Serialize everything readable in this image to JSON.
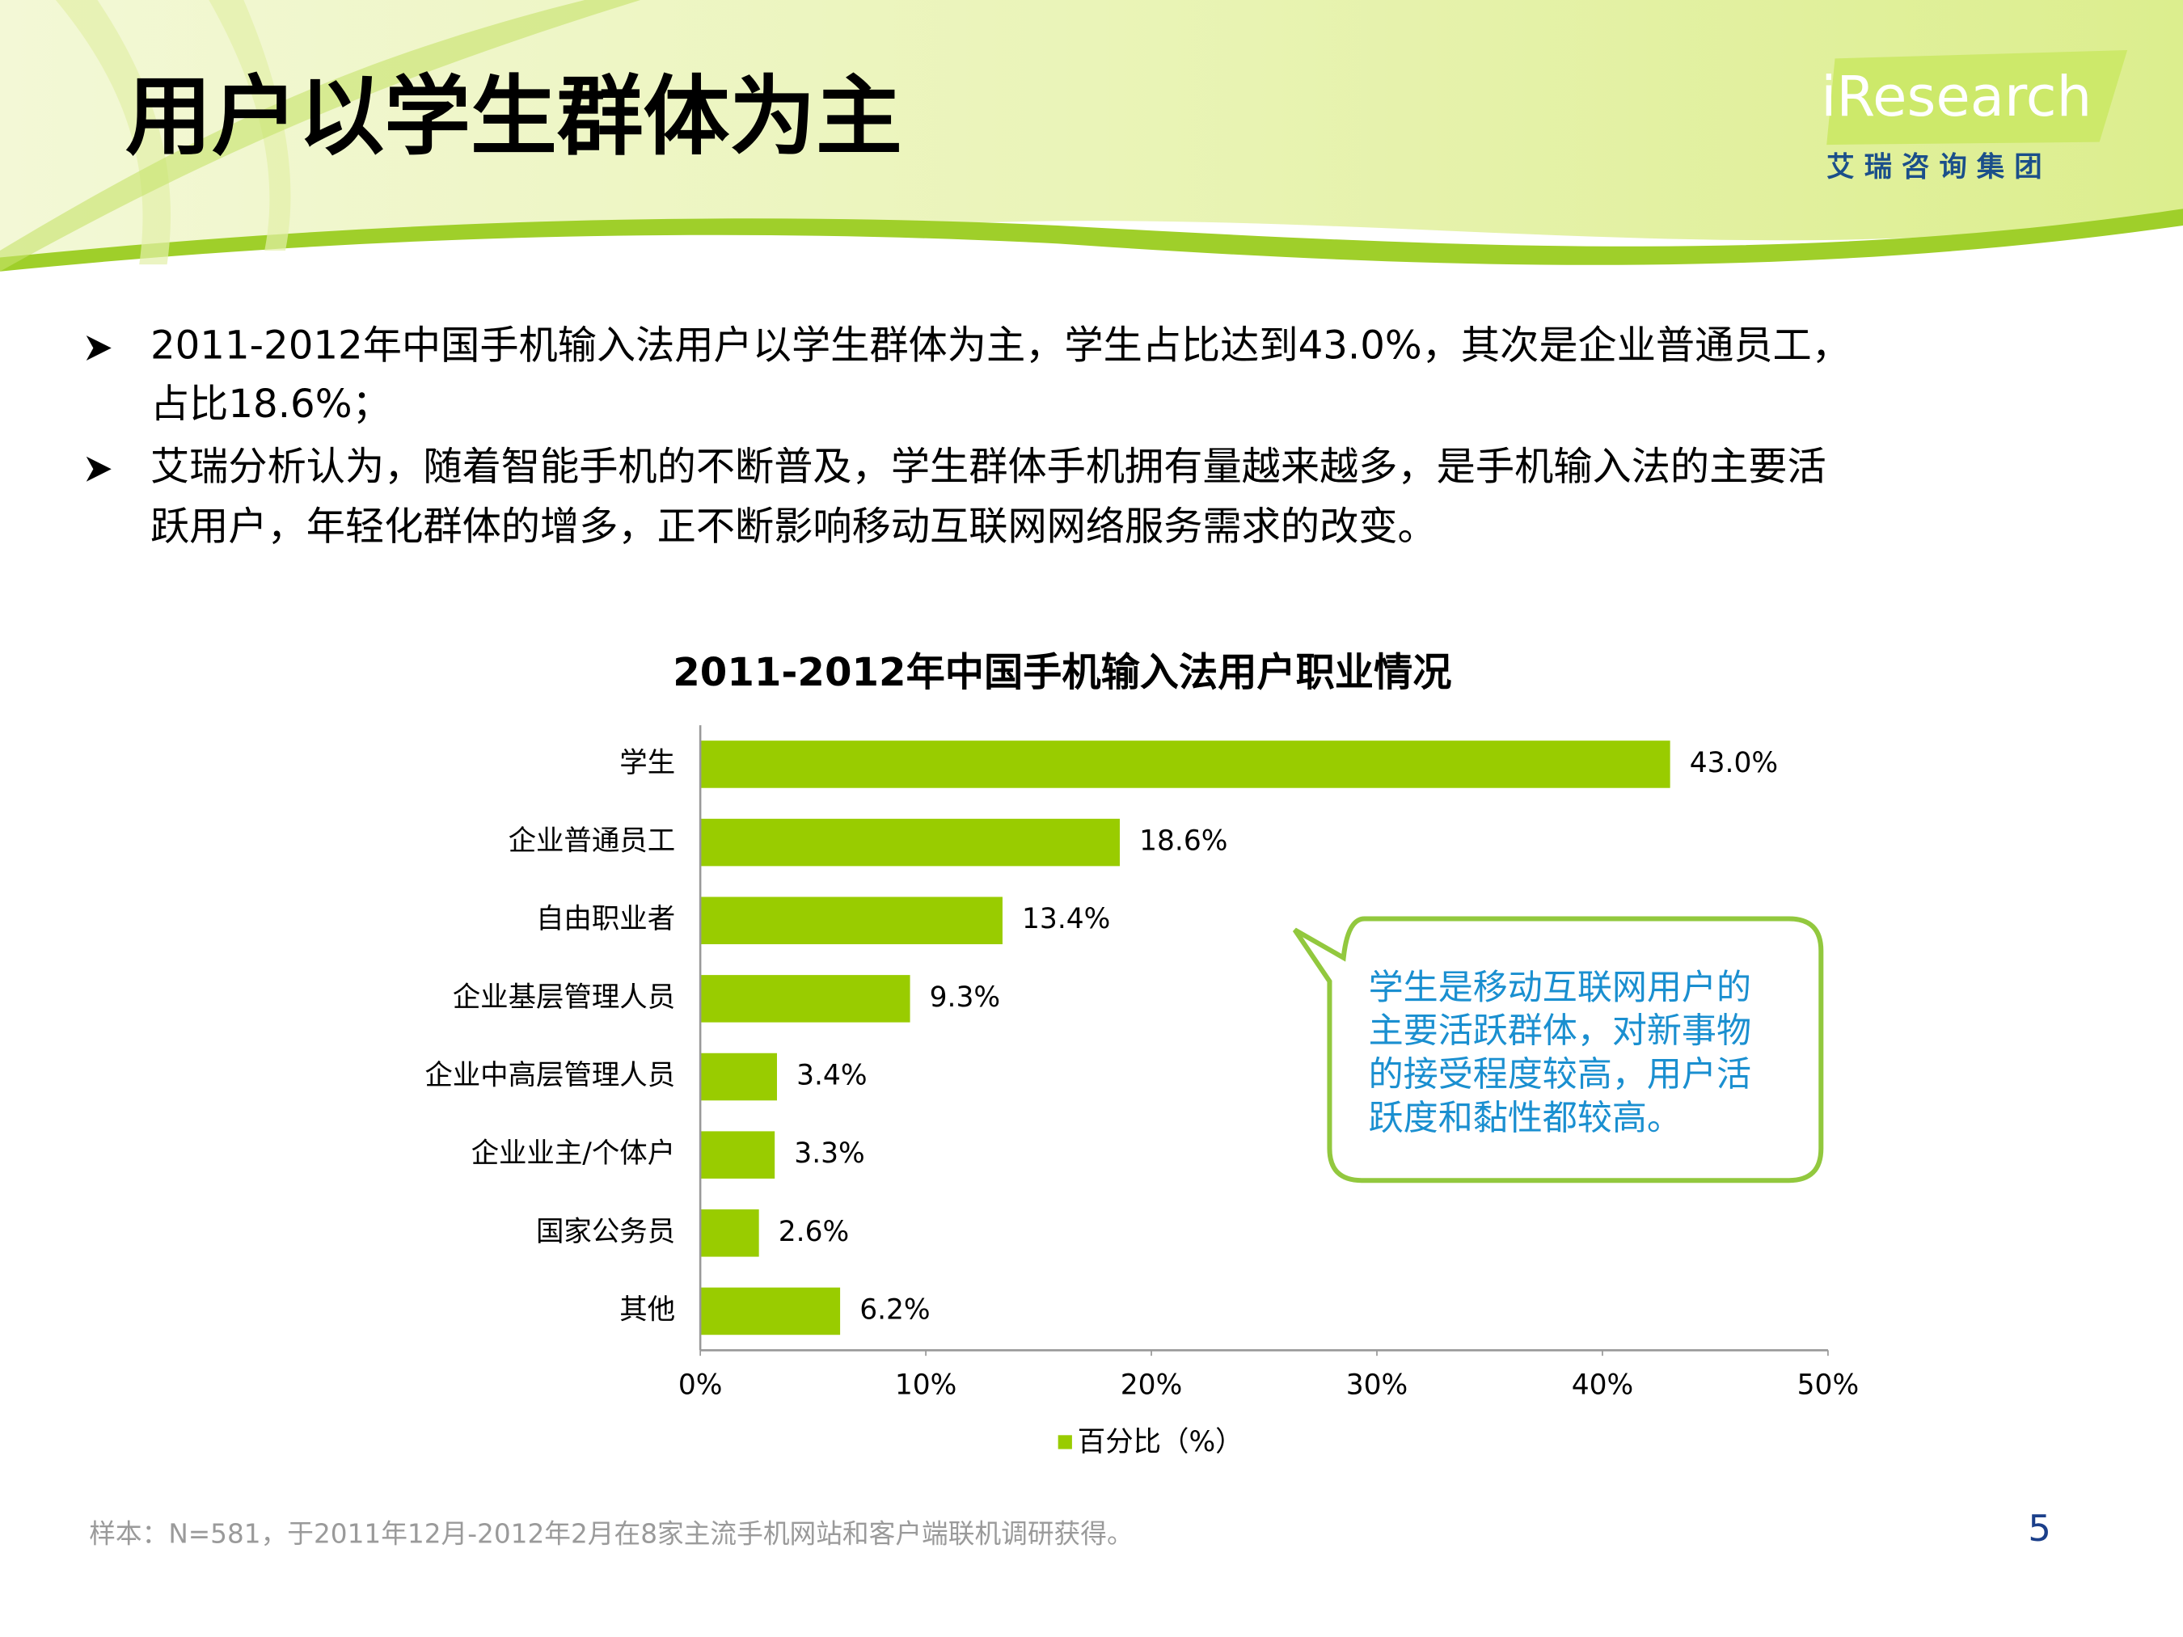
{
  "header": {
    "title": "用户以学生群体为主"
  },
  "logo": {
    "name": "iResearch",
    "subtitle": "艾 瑞 咨 询 集 团"
  },
  "bullets": [
    [
      "2011-2012年中国手机输入法用户以学生群体为主，学生占比达到43.0%，其次是企业普通员工，",
      "占比18.6%；"
    ],
    [
      "艾瑞分析认为，随着智能手机的不断普及，学生群体手机拥有量越来越多，是手机输入法的主要活",
      "跃用户，年轻化群体的增多，正不断影响移动互联网网络服务需求的改变。"
    ]
  ],
  "chart_data": {
    "type": "bar",
    "orientation": "horizontal",
    "title": "2011-2012年中国手机输入法用户职业情况",
    "categories": [
      "学生",
      "企业普通员工",
      "自由职业者",
      "企业基层管理人员",
      "企业中高层管理人员",
      "企业业主/个体户",
      "国家公务员",
      "其他"
    ],
    "series": [
      {
        "name": "百分比（%）",
        "color": "#99cc00",
        "values": [
          43.0,
          18.6,
          13.4,
          9.3,
          3.4,
          3.3,
          2.6,
          6.2
        ],
        "value_labels": [
          "43.0%",
          "18.6%",
          "13.4%",
          "9.3%",
          "3.4%",
          "3.3%",
          "2.6%",
          "6.2%"
        ]
      }
    ],
    "xlim": [
      0,
      50
    ],
    "xticks": [
      {
        "value": 0,
        "label": "0%"
      },
      {
        "value": 10,
        "label": "10%"
      },
      {
        "value": 20,
        "label": "20%"
      },
      {
        "value": 30,
        "label": "30%"
      },
      {
        "value": 40,
        "label": "40%"
      },
      {
        "value": 50,
        "label": "50%"
      }
    ],
    "grid": false,
    "legend": "bottom"
  },
  "callout": [
    "学生是移动互联网用户的",
    "主要活跃群体，对新事物",
    "的接受程度较高，用户活",
    "跃度和黏性都较高。"
  ],
  "footnote": "样本：N=581，于2011年12月-2012年2月在8家主流手机网站和客户端联机调研获得。",
  "page_number": "5"
}
